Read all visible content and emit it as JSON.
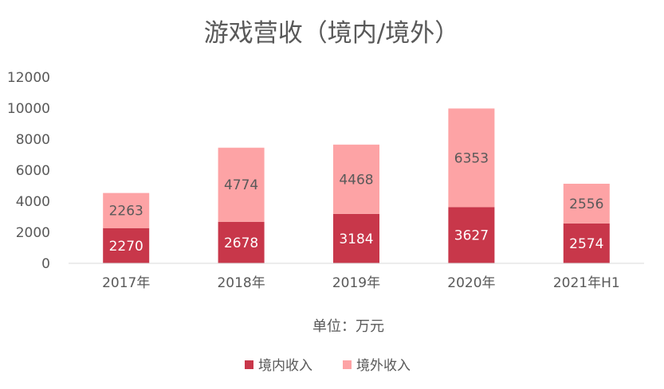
{
  "chart_data": {
    "type": "bar",
    "stacked": true,
    "title": "游戏营收（境内/境外）",
    "xlabel": "单位：万元",
    "ylabel": "",
    "categories": [
      "2017年",
      "2018年",
      "2019年",
      "2020年",
      "2021年H1"
    ],
    "series": [
      {
        "name": "境内收入",
        "color": "#c8374a",
        "values": [
          2270,
          2678,
          3184,
          3627,
          2574
        ]
      },
      {
        "name": "境外收入",
        "color": "#fda3a5",
        "values": [
          2263,
          4774,
          4468,
          6353,
          2556
        ]
      }
    ],
    "ylim": [
      0,
      12000
    ],
    "yticks": [
      "0",
      "2000",
      "4000",
      "6000",
      "8000",
      "10000",
      "12000"
    ],
    "legend_position": "bottom",
    "grid": false
  }
}
